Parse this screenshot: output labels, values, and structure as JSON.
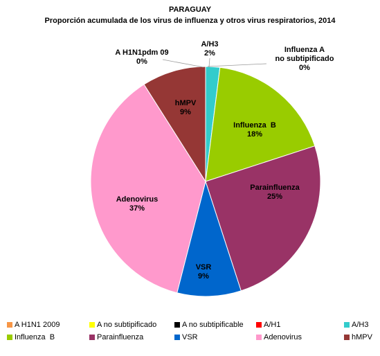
{
  "chart_data": {
    "type": "pie",
    "title": "PARAGUAY",
    "subtitle": "Proporción acumulada de los virus de influenza y otros virus respiratorios, 2014",
    "categories": [
      "A H1N1 2009",
      "A no subtipificado",
      "A no subtipificable",
      "A/H1",
      "A/H3",
      "Influenza  B",
      "Parainfluenza",
      "VSR",
      "Adenovirus",
      "hMPV"
    ],
    "values": [
      0,
      0,
      0,
      0,
      2,
      18,
      25,
      9,
      37,
      9
    ],
    "value_labels": [
      "0%",
      "0%",
      null,
      null,
      "2%",
      "18%",
      "25%",
      "9%",
      "37%",
      "9%"
    ],
    "slice_labels": [
      "A H1N1pdm 09",
      "Influenza A\nno subtipificado",
      null,
      null,
      "A/H3",
      "Influenza  B",
      "Parainfluenza",
      "VSR",
      "Adenovirus",
      "hMPV"
    ],
    "colors": [
      "#f79646",
      "#ffff00",
      "#000000",
      "#ff0000",
      "#33cccc",
      "#99cc00",
      "#993366",
      "#0066cc",
      "#ff99cc",
      "#953735"
    ]
  }
}
